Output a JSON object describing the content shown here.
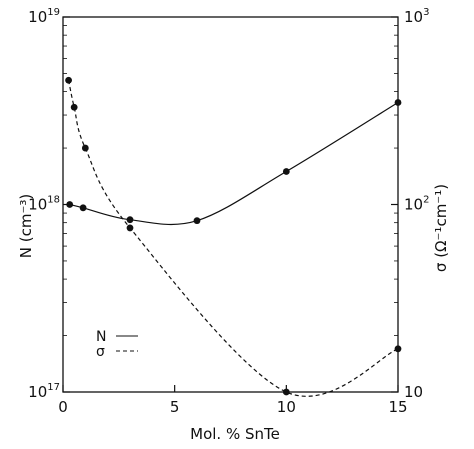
{
  "chart_data": {
    "type": "line",
    "xlabel": "Mol. % SnTe",
    "ylabel_left": "N (cm⁻³)",
    "ylabel_right": "σ (Ω⁻¹cm⁻¹)",
    "xlim": [
      0,
      15
    ],
    "ylim_left": [
      1e+17,
      1e+19
    ],
    "ylim_right": [
      10,
      1000
    ],
    "yscale": "log",
    "grid": false,
    "legend_position": "bottom-left",
    "x_tick_labels": [
      "0",
      "5",
      "10",
      "15"
    ],
    "y_left_tick_labels": [
      {
        "base": "10",
        "exp": "19"
      },
      {
        "base": "10",
        "exp": "18"
      },
      {
        "base": "10",
        "exp": "17"
      }
    ],
    "y_right_tick_labels": [
      {
        "base": "10",
        "exp": "3"
      },
      {
        "base": "10",
        "exp": "2"
      },
      {
        "base": "10",
        "exp": ""
      }
    ],
    "series": [
      {
        "name": "N",
        "axis": "left",
        "line_style": "solid",
        "points": [
          {
            "x": 0.3,
            "y": 1e+18
          },
          {
            "x": 0.9,
            "y": 9.6e+17
          },
          {
            "x": 3.0,
            "y": 8.3e+17
          },
          {
            "x": 6.0,
            "y": 8.2e+17
          },
          {
            "x": 10.0,
            "y": 1.5e+18
          },
          {
            "x": 15.0,
            "y": 3.5e+18
          }
        ]
      },
      {
        "name": "σ",
        "axis": "right",
        "line_style": "dashed",
        "points": [
          {
            "x": 0.25,
            "y": 460
          },
          {
            "x": 0.5,
            "y": 330
          },
          {
            "x": 1.0,
            "y": 200
          },
          {
            "x": 3.0,
            "y": 75
          },
          {
            "x": 10.0,
            "y": 10
          },
          {
            "x": 15.0,
            "y": 17
          }
        ]
      }
    ]
  }
}
